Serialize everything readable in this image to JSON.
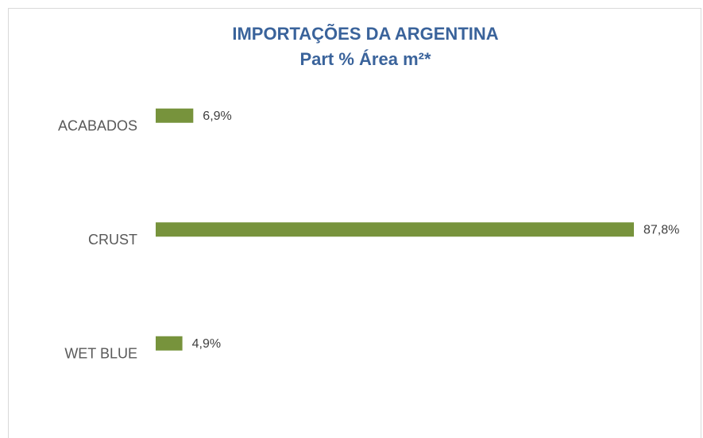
{
  "chart_data": {
    "type": "bar",
    "orientation": "horizontal",
    "title": "IMPORTAÇÕES DA ARGENTINA",
    "subtitle": "Part % Área m²*",
    "categories": [
      "ACABADOS",
      "CRUST",
      "WET BLUE"
    ],
    "values": [
      6.9,
      87.8,
      4.9
    ],
    "value_labels": [
      "6,9%",
      "87,8%",
      "4,9%"
    ],
    "color": "#77933c"
  }
}
